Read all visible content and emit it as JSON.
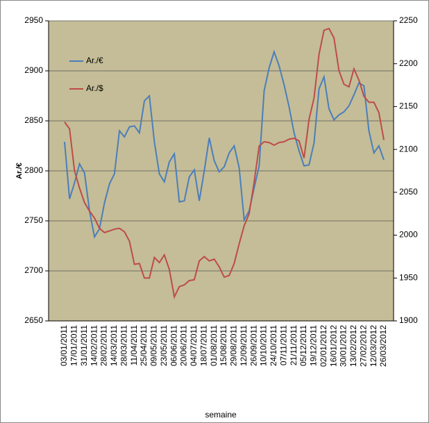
{
  "chart_data": {
    "type": "line",
    "y_label": "Ar./€",
    "x_label": "semaine",
    "categories": [
      "03/01/2011",
      null,
      "17/01/2011",
      null,
      "31/01/2011",
      null,
      "14/02/2011",
      null,
      "28/02/2011",
      null,
      "14/03/2011",
      null,
      "28/03/2011",
      null,
      "11/04/2011",
      null,
      "25/04/2011",
      null,
      "09/05/2011",
      null,
      "23/05/2011",
      null,
      "06/06/2011",
      null,
      "20/06/2011",
      null,
      "04/07/2011",
      null,
      "18/07/2011",
      null,
      "01/08/2011",
      null,
      "15/08/2011",
      null,
      "29/08/2011",
      null,
      "12/09/2011",
      null,
      "26/09/2011",
      null,
      "10/10/2011",
      null,
      "24/10/2011",
      null,
      "07/11/2011",
      null,
      "21/11/2011",
      null,
      "05/12/2011",
      null,
      "19/12/2011",
      null,
      "02/01/2012",
      null,
      "16/01/2012",
      null,
      "30/01/2012",
      null,
      "13/02/2012",
      null,
      "27/02/2012",
      null,
      "12/03/2012",
      null,
      "26/03/2012"
    ],
    "series": [
      {
        "name": "Ar./€",
        "color": "#4a7ebb",
        "axis": "y",
        "values": [
          2829,
          2772,
          2788,
          2807,
          2798,
          2760,
          2734,
          2742,
          2768,
          2787,
          2797,
          2840,
          2834,
          2844,
          2845,
          2838,
          2870,
          2875,
          2829,
          2797,
          2789,
          2809,
          2817,
          2769,
          2770,
          2794,
          2801,
          2770,
          2800,
          2833,
          2810,
          2799,
          2804,
          2818,
          2825,
          2803,
          2751,
          2760,
          2783,
          2805,
          2880,
          2903,
          2919,
          2905,
          2886,
          2864,
          2838,
          2820,
          2805,
          2806,
          2828,
          2882,
          2894,
          2862,
          2851,
          2856,
          2859,
          2865,
          2876,
          2888,
          2885,
          2840,
          2818,
          2825,
          2811
        ]
      },
      {
        "name": "Ar./$",
        "color": "#be4b48",
        "axis": "y2",
        "values": [
          2132,
          2124,
          2075,
          2055,
          2038,
          2028,
          2020,
          2008,
          2003,
          2005,
          2007,
          2008,
          2004,
          1993,
          1966,
          1967,
          1950,
          1950,
          1974,
          1968,
          1977,
          1960,
          1928,
          1940,
          1942,
          1947,
          1948,
          1970,
          1975,
          1970,
          1972,
          1963,
          1951,
          1953,
          1967,
          1990,
          2011,
          2025,
          2062,
          2104,
          2109,
          2108,
          2105,
          2108,
          2109,
          2112,
          2113,
          2110,
          2090,
          2135,
          2160,
          2211,
          2239,
          2241,
          2230,
          2192,
          2176,
          2173,
          2194,
          2181,
          2162,
          2155,
          2155,
          2143,
          2111
        ]
      }
    ],
    "ylim": [
      2650,
      2950
    ],
    "yticks": [
      2650,
      2700,
      2750,
      2800,
      2850,
      2900,
      2950
    ],
    "y2lim": [
      1900,
      2250
    ],
    "y2ticks": [
      1900,
      1950,
      2000,
      2050,
      2100,
      2150,
      2200,
      2250
    ],
    "grid": true,
    "legend": "upper left",
    "background": "#c4bd97"
  }
}
